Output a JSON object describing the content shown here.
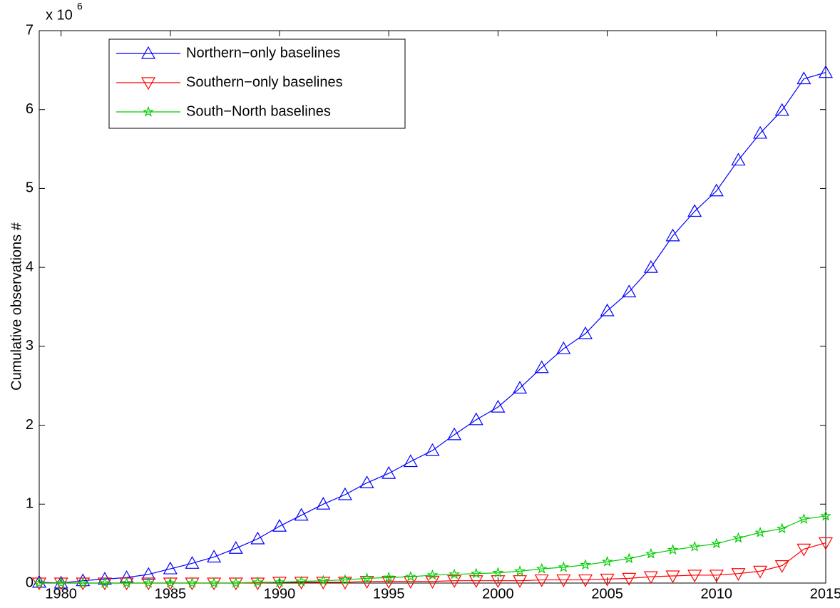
{
  "chart_data": {
    "type": "line",
    "ylabel": "Cumulative observations #",
    "y_multiplier": "x 10",
    "y_multiplier_exp": "6",
    "x": [
      1979,
      1980,
      1981,
      1982,
      1983,
      1984,
      1985,
      1986,
      1987,
      1988,
      1989,
      1990,
      1991,
      1992,
      1993,
      1994,
      1995,
      1996,
      1997,
      1998,
      1999,
      2000,
      2001,
      2002,
      2003,
      2004,
      2005,
      2006,
      2007,
      2008,
      2009,
      2010,
      2011,
      2012,
      2013,
      2014,
      2015
    ],
    "series": [
      {
        "name": "Northern−only baselines",
        "color": "#0000ff",
        "marker": "triangle-up",
        "values": [
          0.01,
          0.0,
          0.03,
          0.05,
          0.07,
          0.11,
          0.18,
          0.25,
          0.33,
          0.44,
          0.56,
          0.72,
          0.86,
          1.0,
          1.12,
          1.27,
          1.39,
          1.54,
          1.68,
          1.88,
          2.07,
          2.23,
          2.47,
          2.73,
          2.97,
          3.16,
          3.45,
          3.69,
          4.0,
          4.4,
          4.71,
          4.97,
          5.36,
          5.7,
          5.99,
          6.39,
          6.47
        ]
      },
      {
        "name": "Southern−only baselines",
        "color": "#ff0000",
        "marker": "triangle-down",
        "values": [
          0.0,
          0.0,
          0.0,
          0.0,
          0.0,
          0.0,
          0.0,
          0.0,
          0.0,
          0.0,
          0.0,
          0.01,
          0.01,
          0.01,
          0.01,
          0.02,
          0.02,
          0.02,
          0.02,
          0.03,
          0.03,
          0.03,
          0.03,
          0.04,
          0.04,
          0.04,
          0.05,
          0.06,
          0.08,
          0.09,
          0.1,
          0.1,
          0.12,
          0.15,
          0.22,
          0.43,
          0.51
        ]
      },
      {
        "name": "South−North baselines",
        "color": "#00cc00",
        "marker": "star",
        "values": [
          0.0,
          0.0,
          0.0,
          0.0,
          0.0,
          0.0,
          0.0,
          0.0,
          0.0,
          0.0,
          0.01,
          0.01,
          0.02,
          0.03,
          0.04,
          0.06,
          0.07,
          0.08,
          0.1,
          0.11,
          0.12,
          0.13,
          0.15,
          0.18,
          0.2,
          0.23,
          0.27,
          0.31,
          0.37,
          0.42,
          0.46,
          0.5,
          0.57,
          0.64,
          0.69,
          0.81,
          0.85
        ]
      }
    ],
    "xlim": [
      1979,
      2015
    ],
    "xticks": [
      1980,
      1985,
      1990,
      1995,
      2000,
      2005,
      2010,
      2015
    ],
    "ylim": [
      0,
      7
    ],
    "yticks": [
      0,
      1,
      2,
      3,
      4,
      5,
      6,
      7
    ],
    "grid": false,
    "legend": "upper left"
  }
}
